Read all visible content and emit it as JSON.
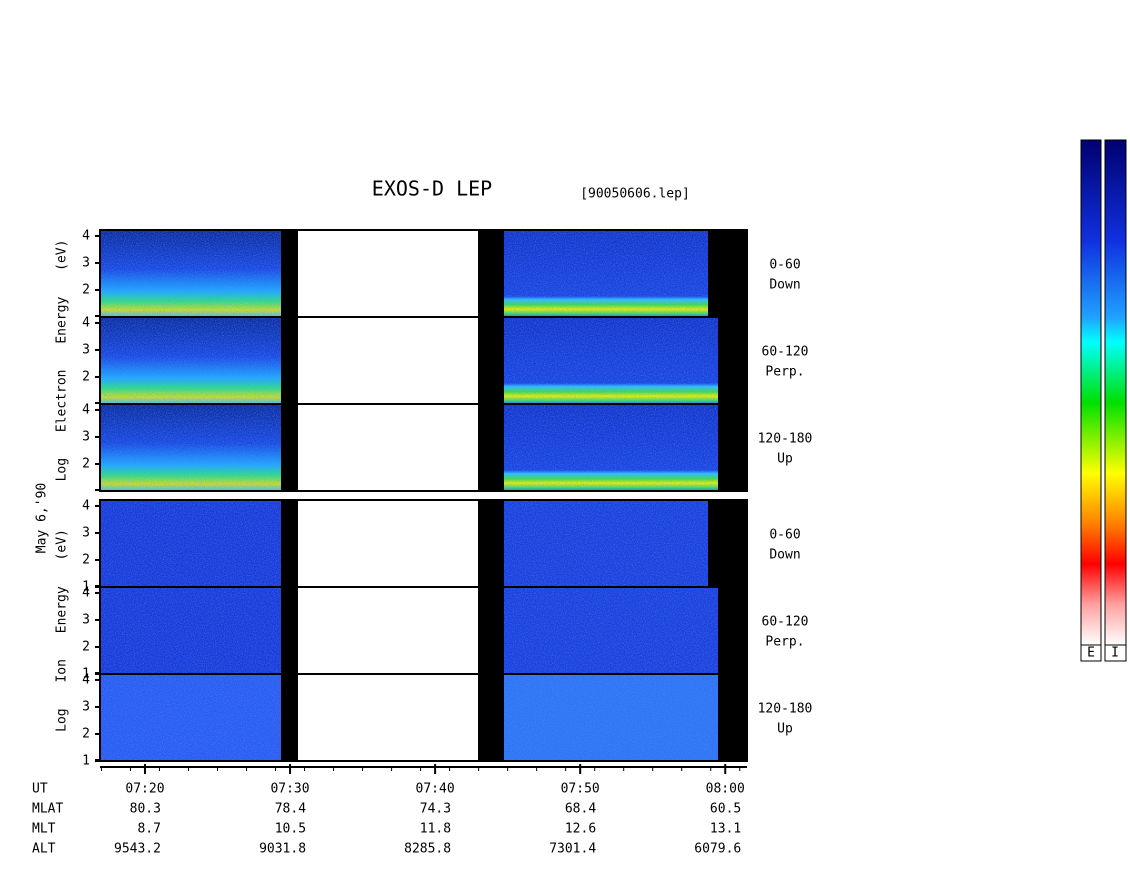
{
  "chart_data": {
    "type": "spectrogram",
    "title": "EXOS-D LEP",
    "file_label": "[90050606.lep]",
    "date_label": "May 6,'90",
    "ylim": [
      1,
      4.22
    ],
    "groups": [
      {
        "ylabel": "Log Electron Energy (eV)",
        "yticks": [
          2,
          3,
          4
        ],
        "panels": [
          {
            "angle": "0-60",
            "direction": "Down"
          },
          {
            "angle": "60-120",
            "direction": "Perp."
          },
          {
            "angle": "120-180",
            "direction": "Up"
          }
        ]
      },
      {
        "ylabel": "Log Ion Energy (eV)",
        "yticks": [
          1,
          2,
          3,
          4
        ],
        "panels": [
          {
            "angle": "0-60",
            "direction": "Down"
          },
          {
            "angle": "60-120",
            "direction": "Perp."
          },
          {
            "angle": "120-180",
            "direction": "Up"
          }
        ]
      }
    ],
    "xlim": [
      16.9,
      61.5
    ],
    "xticks": [
      {
        "value": 20,
        "label": "07:20"
      },
      {
        "value": 30,
        "label": "07:30"
      },
      {
        "value": 40,
        "label": "07:40"
      },
      {
        "value": 50,
        "label": "07:50"
      },
      {
        "value": 60,
        "label": "08:00"
      }
    ],
    "x_label": "UT",
    "orbit": [
      {
        "name": "MLAT",
        "values": [
          80.3,
          78.4,
          74.3,
          68.4,
          60.5
        ]
      },
      {
        "name": "MLT",
        "values": [
          8.7,
          10.5,
          11.8,
          12.6,
          13.1
        ]
      },
      {
        "name": "ALT",
        "values": [
          9543.2,
          9031.8,
          8285.8,
          7301.4,
          6079.6
        ]
      }
    ],
    "colorbar_labels": [
      "E",
      "I"
    ]
  }
}
